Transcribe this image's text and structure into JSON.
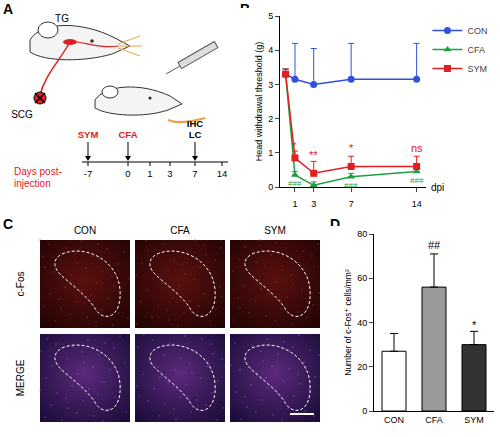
{
  "panel_labels": [
    "A",
    "B",
    "C",
    "D"
  ],
  "diagram": {
    "ganglia": [
      "TG",
      "SCG"
    ],
    "timeline": {
      "title": "Days post-injection",
      "ticks": [
        "-7",
        "0",
        "1",
        "3",
        "7",
        "14"
      ],
      "events": [
        {
          "day": "-7",
          "label": [
            "SYM"
          ],
          "color": "#e02020"
        },
        {
          "day": "0",
          "label": [
            "CFA"
          ],
          "color": "#e02020"
        },
        {
          "day": "7",
          "label": [
            "IHC",
            "LC"
          ],
          "color": "#000000"
        }
      ]
    }
  },
  "images": {
    "columns": [
      "CON",
      "CFA",
      "SYM"
    ],
    "rows": [
      "c-Fos",
      "MERGE"
    ]
  },
  "chart_data": [
    {
      "type": "line",
      "x_label": "dpi",
      "y_label": "Head withdrawal threshold (g)",
      "x": [
        0,
        1,
        3,
        7,
        14
      ],
      "xlim": [
        -0.6,
        15
      ],
      "xticks": [
        1,
        3,
        7,
        14
      ],
      "ylim": [
        0,
        5
      ],
      "yticks": [
        0,
        1,
        2,
        3,
        4,
        5
      ],
      "legend": "top-right",
      "grid": false,
      "series": [
        {
          "name": "CON",
          "color": "#3050e0",
          "marker": "circle",
          "values": [
            3.3,
            3.15,
            3.0,
            3.15,
            3.15
          ],
          "error": [
            0.15,
            1.05,
            1.05,
            1.05,
            1.05
          ]
        },
        {
          "name": "CFA",
          "color": "#1ea040",
          "marker": "triangle",
          "values": [
            3.3,
            0.35,
            0.05,
            0.3,
            0.45
          ],
          "error": [
            0.15,
            0.1,
            0.1,
            0.1,
            0.1
          ]
        },
        {
          "name": "SYM",
          "color": "#e02020",
          "marker": "square",
          "values": [
            3.3,
            0.85,
            0.4,
            0.6,
            0.6
          ],
          "error": [
            0.15,
            0.2,
            0.35,
            0.3,
            0.3
          ]
        }
      ],
      "annotations": [
        {
          "x": 1,
          "y": 1.2,
          "text": "*",
          "group": "SYM"
        },
        {
          "x": 3,
          "y": 0.95,
          "text": "**",
          "group": "SYM"
        },
        {
          "x": 7,
          "y": 1.15,
          "text": "*",
          "group": "SYM"
        },
        {
          "x": 14,
          "y": 1.15,
          "text": "ns",
          "group": "SYM"
        },
        {
          "x": 1,
          "y": 0.1,
          "text": "###",
          "group": "CFA"
        },
        {
          "x": 3,
          "y": -0.1,
          "text": "###",
          "group": "CFA"
        },
        {
          "x": 7,
          "y": 0.05,
          "text": "###",
          "group": "CFA"
        },
        {
          "x": 14,
          "y": 0.2,
          "text": "###",
          "group": "CFA"
        }
      ]
    },
    {
      "type": "bar",
      "y_label": "Number of c-Fos⁺ cells/mm²",
      "categories": [
        "CON",
        "CFA",
        "SYM"
      ],
      "values": [
        27,
        56,
        30
      ],
      "error": [
        8,
        15,
        6
      ],
      "colors": [
        "#ffffff",
        "#9a9a9a",
        "#333333"
      ],
      "ylim": [
        0,
        80
      ],
      "yticks": [
        0,
        20,
        40,
        60,
        80
      ],
      "grid": false,
      "annotations": [
        {
          "category": "CFA",
          "y": 75,
          "text": "##"
        },
        {
          "category": "SYM",
          "y": 39,
          "text": "*"
        }
      ]
    }
  ]
}
